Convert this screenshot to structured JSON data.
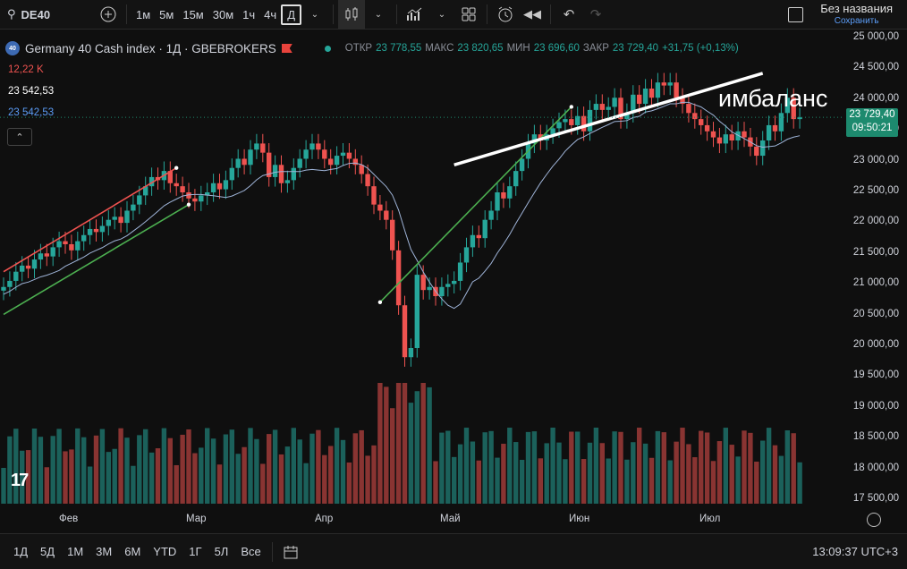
{
  "toolbar": {
    "symbol": "DE40",
    "intervals": [
      "1м",
      "5м",
      "15м",
      "30м",
      "1ч",
      "4ч",
      "Д"
    ],
    "active_interval": "Д",
    "layout_title": "Без названия",
    "layout_save": "Сохранить"
  },
  "legend": {
    "badge": "40",
    "title": "Germany 40 Cash index · 1Д · GBEBROKERS",
    "open_label": "ОТКР",
    "open": "23 778,55",
    "high_label": "МАКС",
    "high": "23 820,65",
    "low_label": "МИН",
    "low": "23 696,60",
    "close_label": "ЗАКР",
    "close": "23 729,40",
    "change": "+31,75 (+0,13%)",
    "volume": "12,22 K",
    "ma1": "23 542,53",
    "ma2": "23 542,53"
  },
  "price_axis": {
    "ticks": [
      "25 000,00",
      "24 500,00",
      "24 000,00",
      "23 500,00",
      "23 000,00",
      "22 500,00",
      "22 000,00",
      "21 500,00",
      "21 000,00",
      "20 500,00",
      "20 000,00",
      "19 500,00",
      "19 000,00",
      "18 500,00",
      "18 000,00",
      "17 500,00"
    ],
    "current_price": "23 729,40",
    "countdown": "09:50:21"
  },
  "time_axis": {
    "months": [
      "Фев",
      "Мар",
      "Апр",
      "Май",
      "Июн",
      "Июл"
    ]
  },
  "annotation": "имбаланс",
  "ranges": [
    "1Д",
    "5Д",
    "1М",
    "3М",
    "6М",
    "YTD",
    "1Г",
    "5Л",
    "Все"
  ],
  "clock": "13:09:37 UTC+3",
  "colors": {
    "up": "#26a69a",
    "down": "#ef5350",
    "bg": "#0f0f0f"
  },
  "chart_data": {
    "type": "candlestick",
    "ylim": [
      17400,
      25050
    ],
    "closes": [
      20950,
      21050,
      21200,
      21300,
      21250,
      21400,
      21500,
      21450,
      21600,
      21700,
      21650,
      21550,
      21700,
      21800,
      21900,
      21850,
      21950,
      22050,
      22100,
      22000,
      22200,
      22300,
      22450,
      22600,
      22750,
      22700,
      22850,
      22650,
      22600,
      22500,
      22400,
      22350,
      22450,
      22500,
      22650,
      22550,
      22700,
      22900,
      23050,
      22950,
      23200,
      23300,
      23150,
      22750,
      22950,
      22650,
      22700,
      22900,
      23050,
      23200,
      23300,
      23200,
      23050,
      22950,
      23100,
      23150,
      23050,
      22950,
      22800,
      22600,
      22300,
      22200,
      22050,
      21550,
      20650,
      19800,
      19950,
      21150,
      20900,
      20950,
      20800,
      20950,
      21000,
      21050,
      21350,
      21600,
      21800,
      21750,
      22050,
      22200,
      22500,
      22400,
      22600,
      22850,
      23050,
      23300,
      23450,
      23350,
      23450,
      23550,
      23650,
      23700,
      23600,
      23750,
      23500,
      23850,
      23950,
      23850,
      23900,
      24050,
      23700,
      23800,
      24100,
      23950,
      24200,
      24050,
      24300,
      24250,
      24300,
      24050,
      23950,
      23800,
      23700,
      23600,
      23500,
      23400,
      23300,
      23450,
      23350,
      23500,
      23400,
      23250,
      23100,
      23350,
      23600,
      23500,
      23800,
      24050,
      23700,
      23729
    ]
  }
}
